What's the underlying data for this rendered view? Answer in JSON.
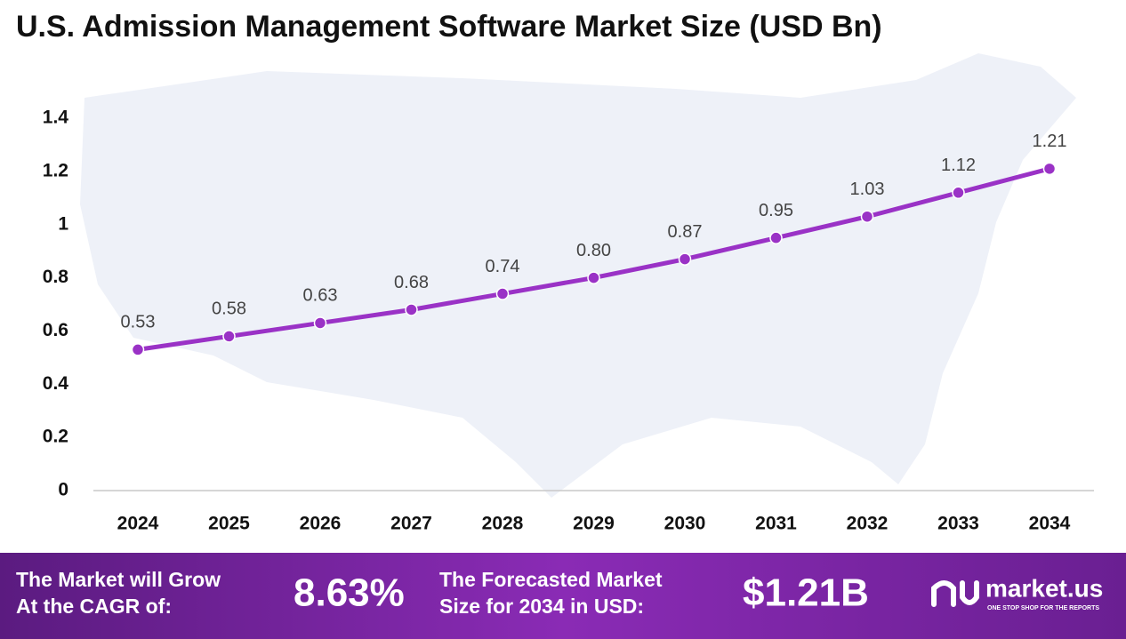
{
  "chart_data": {
    "type": "line",
    "title": "U.S. Admission Management Software Market Size (USD Bn)",
    "categories": [
      "2024",
      "2025",
      "2026",
      "2027",
      "2028",
      "2029",
      "2030",
      "2031",
      "2032",
      "2033",
      "2034"
    ],
    "series": [
      {
        "name": "Market Size",
        "color": "#9a32c6",
        "values": [
          0.53,
          0.58,
          0.63,
          0.68,
          0.74,
          0.8,
          0.87,
          0.95,
          1.03,
          1.12,
          1.21
        ],
        "value_labels": [
          "0.53",
          "0.58",
          "0.63",
          "0.68",
          "0.74",
          "0.80",
          "0.87",
          "0.95",
          "1.03",
          "1.12",
          "1.21"
        ]
      }
    ],
    "ylim": [
      0,
      1.4
    ],
    "yticks": [
      0,
      0.2,
      0.4,
      0.6,
      0.8,
      1,
      1.2,
      1.4
    ],
    "grid": false
  },
  "footer": {
    "cagr_label": [
      "The Market will Grow",
      "At the CAGR of:"
    ],
    "cagr_value": "8.63%",
    "forecast_label": [
      "The Forecasted Market",
      "Size for 2034 in USD:"
    ],
    "forecast_value": "$1.21B",
    "brand": "market.us",
    "tagline": "ONE STOP SHOP FOR THE REPORTS"
  }
}
